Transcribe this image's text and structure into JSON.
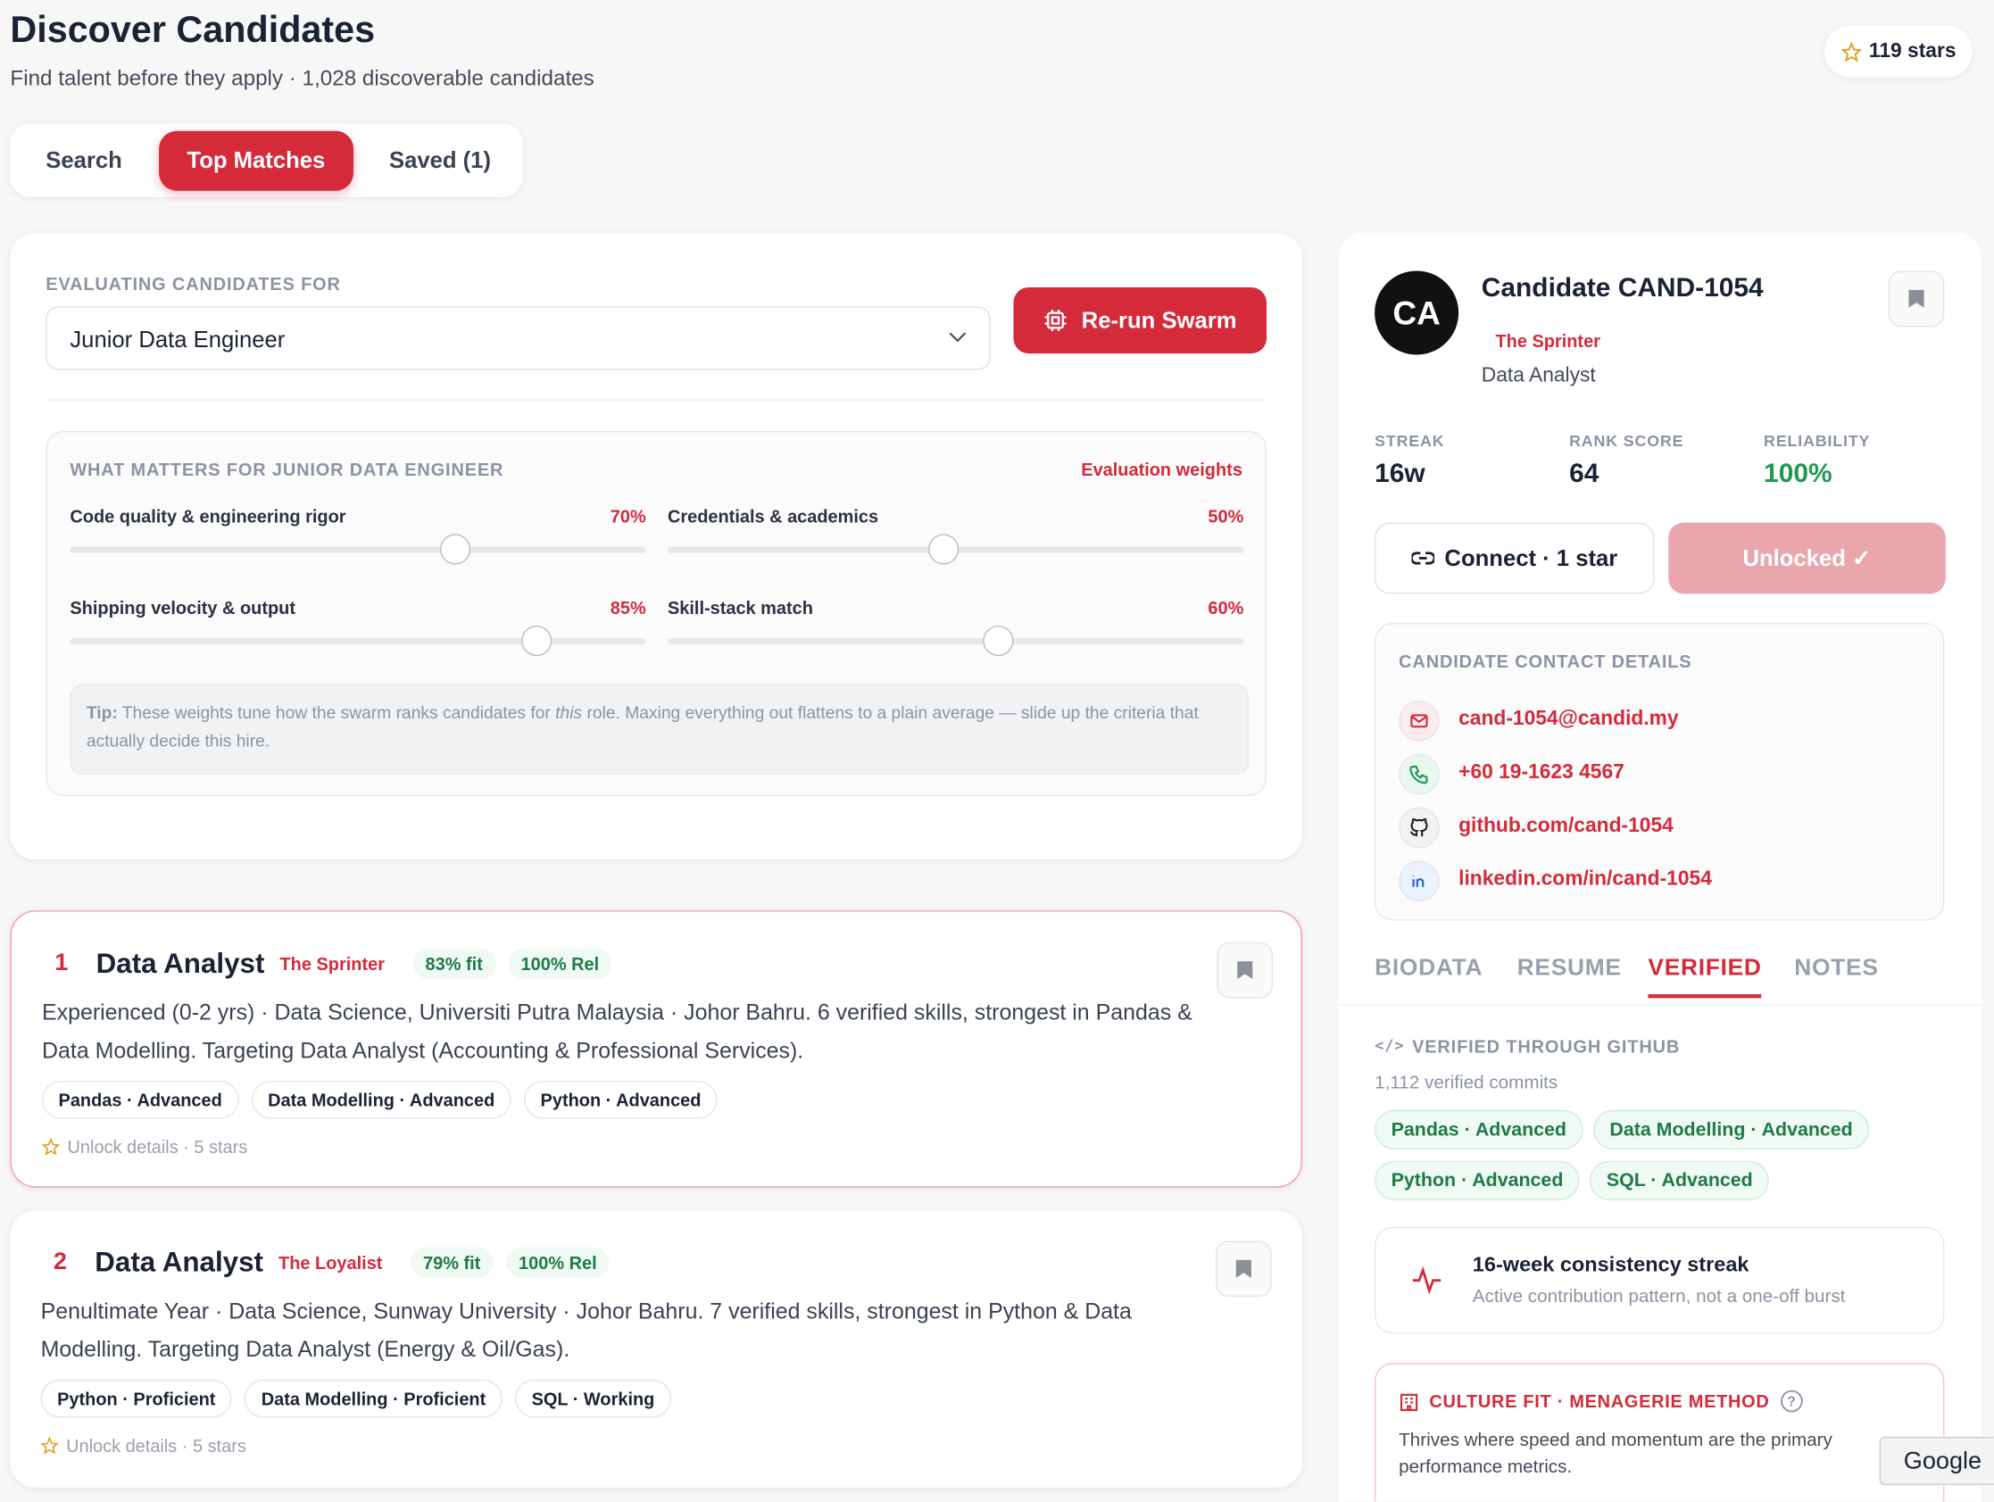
{
  "header": {
    "title": "Discover Candidates",
    "subtitle": "Find talent before they apply · 1,028 discoverable candidates",
    "stars": "119 stars"
  },
  "tabs": [
    "Search",
    "Top Matches",
    "Saved (1)"
  ],
  "evaluation": {
    "label": "EVALUATING CANDIDATES FOR",
    "role": "Junior Data Engineer",
    "button": "Re-run Swarm",
    "weights_title": "WHAT MATTERS FOR JUNIOR DATA ENGINEER",
    "weights_note": "Evaluation weights",
    "weights": [
      {
        "name": "Code quality & engineering rigor",
        "value": 70,
        "label": "70%"
      },
      {
        "name": "Credentials & academics",
        "value": 50,
        "label": "50%"
      },
      {
        "name": "Shipping velocity & output",
        "value": 85,
        "label": "85%"
      },
      {
        "name": "Skill-stack match",
        "value": 60,
        "label": "60%"
      }
    ],
    "tip_label": "Tip:",
    "tip_text_1": "These weights tune how the swarm ranks candidates for",
    "tip_em": "this",
    "tip_text_2": "role. Maxing everything out flattens to a plain average — slide up the criteria that actually decide this hire."
  },
  "results": [
    {
      "rank": "1",
      "title": "Data Analyst",
      "persona": "The Sprinter",
      "fit": "83% fit",
      "rel": "100% Rel",
      "summary": "Experienced (0-2 yrs) · Data Science, Universiti Putra Malaysia · Johor Bahru. 6 verified skills, strongest in Pandas & Data Modelling. Targeting Data Analyst (Accounting & Professional Services).",
      "skills": [
        "Pandas · Advanced",
        "Data Modelling · Advanced",
        "Python · Advanced"
      ],
      "unlock": "Unlock details · 5 stars"
    },
    {
      "rank": "2",
      "title": "Data Analyst",
      "persona": "The Loyalist",
      "fit": "79% fit",
      "rel": "100% Rel",
      "summary": "Penultimate Year · Data Science, Sunway University · Johor Bahru. 7 verified skills, strongest in Python & Data Modelling. Targeting Data Analyst (Energy & Oil/Gas).",
      "skills": [
        "Python · Proficient",
        "Data Modelling · Proficient",
        "SQL · Working"
      ],
      "unlock": "Unlock details · 5 stars"
    }
  ],
  "profile": {
    "initials": "CA",
    "name": "Candidate CAND-1054",
    "persona": "The Sprinter",
    "role": "Data Analyst",
    "stats": [
      {
        "label": "STREAK",
        "value": "16w"
      },
      {
        "label": "RANK SCORE",
        "value": "64"
      },
      {
        "label": "RELIABILITY",
        "value": "100%"
      }
    ],
    "connect": "Connect · 1 star",
    "unlocked": "Unlocked ✓",
    "contact_title": "CANDIDATE CONTACT DETAILS",
    "contacts": [
      "cand-1054@candid.my",
      "+60 19-1623 4567",
      "github.com/cand-1054",
      "linkedin.com/in/cand-1054"
    ],
    "tabs": [
      "BIODATA",
      "RESUME",
      "VERIFIED",
      "NOTES"
    ],
    "verified_title": "VERIFIED THROUGH GITHUB",
    "commits": "1,112 verified commits",
    "skills": [
      "Pandas · Advanced",
      "Data Modelling · Advanced",
      "Python · Advanced",
      "SQL · Advanced"
    ],
    "streak_title": "16-week consistency streak",
    "streak_text": "Active contribution pattern, not a one-off burst",
    "culture_title": "CULTURE FIT · MENAGERIE METHOD",
    "culture_text": "Thrives where speed and momentum are the primary performance metrics."
  },
  "google": "Google"
}
